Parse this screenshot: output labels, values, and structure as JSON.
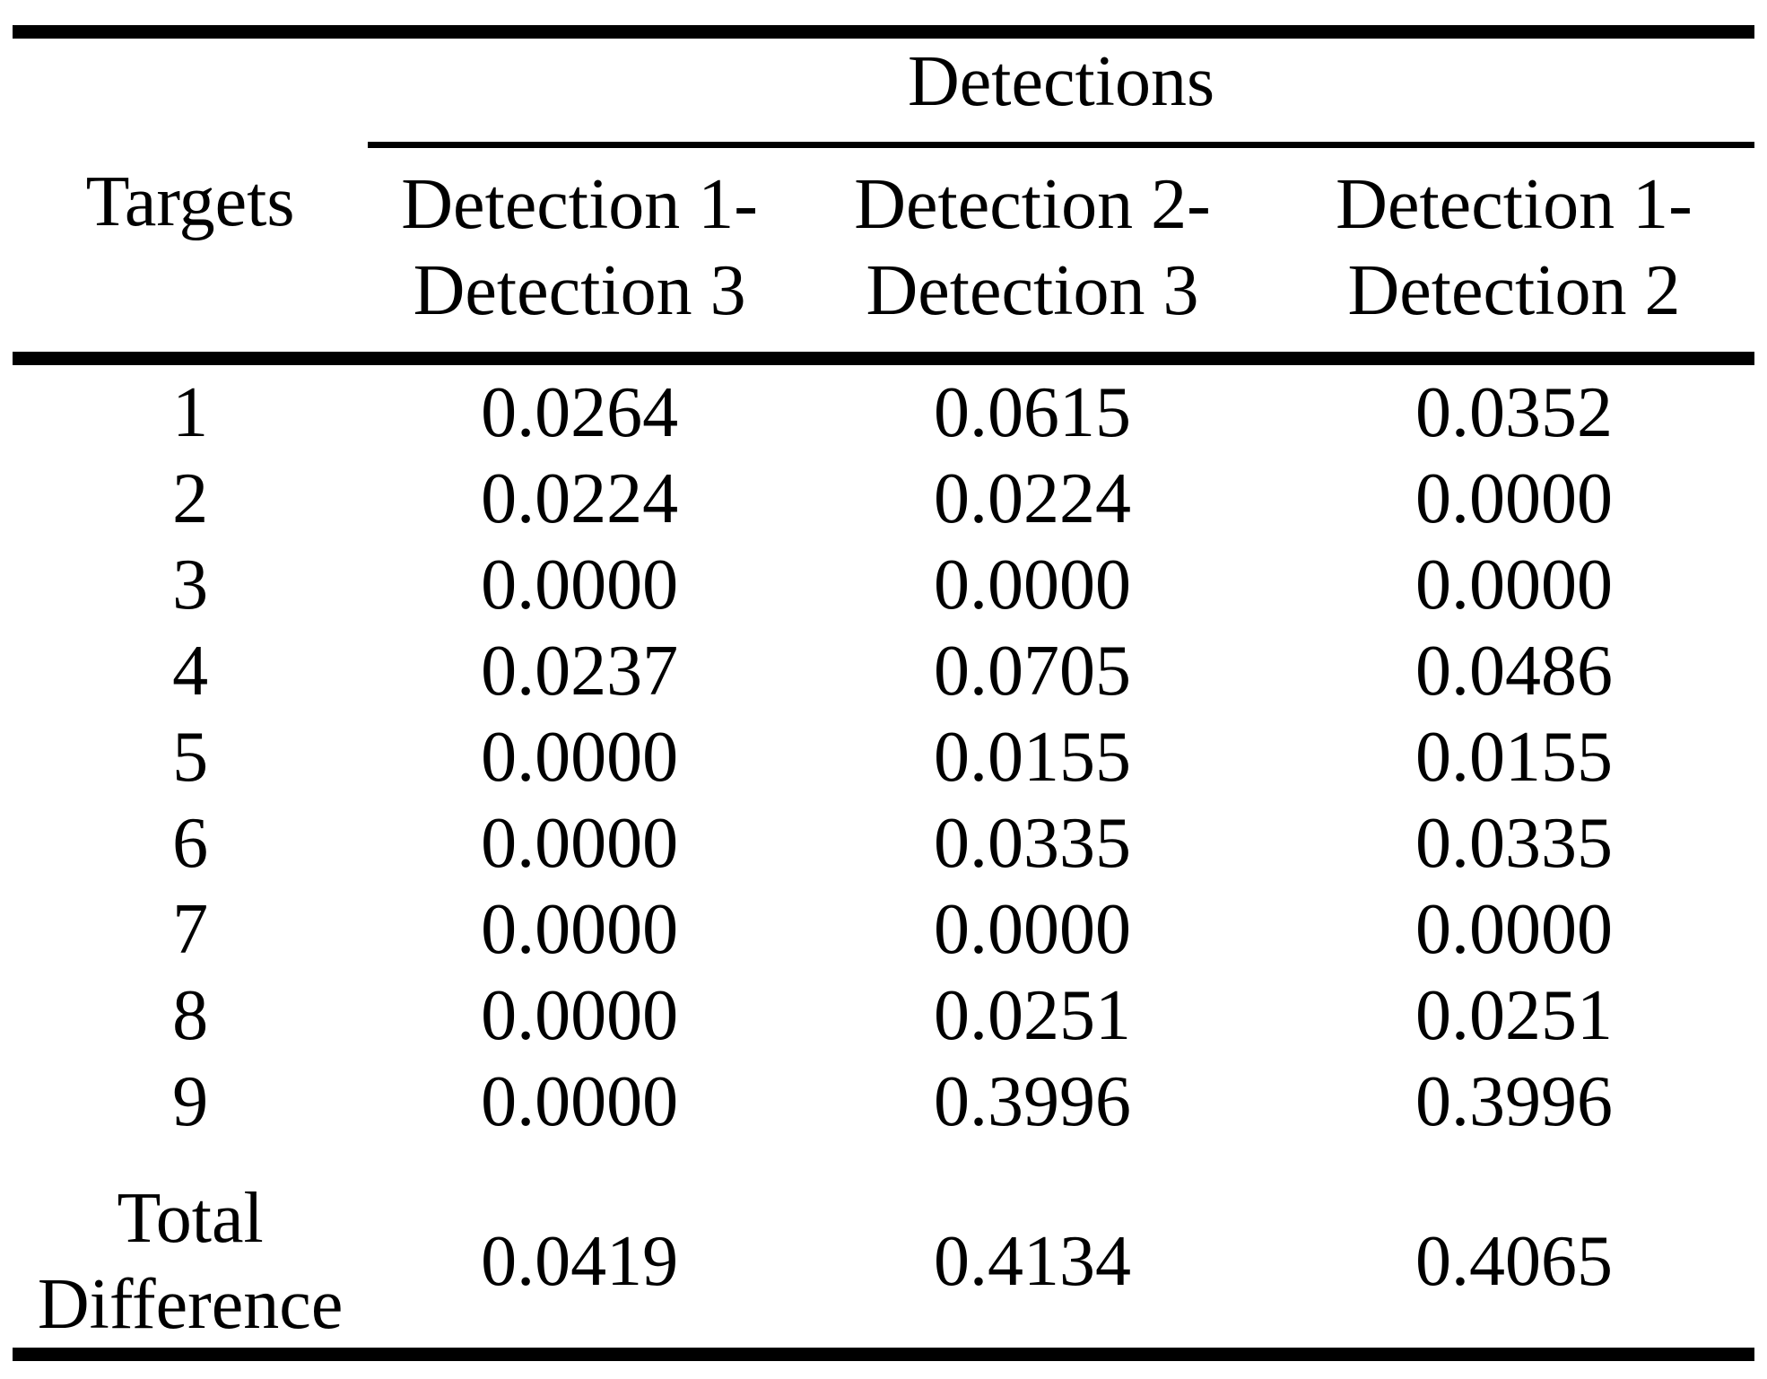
{
  "header": {
    "group_label": "Detections",
    "targets_label": "Targets",
    "columns": [
      {
        "line1": "Detection 1-",
        "line2": "Detection 3"
      },
      {
        "line1": "Detection 2-",
        "line2": "Detection 3"
      },
      {
        "line1": "Detection 1-",
        "line2": "Detection 2"
      }
    ]
  },
  "rows": [
    {
      "target": "1",
      "values": [
        "0.0264",
        "0.0615",
        "0.0352"
      ]
    },
    {
      "target": "2",
      "values": [
        "0.0224",
        "0.0224",
        "0.0000"
      ]
    },
    {
      "target": "3",
      "values": [
        "0.0000",
        "0.0000",
        "0.0000"
      ]
    },
    {
      "target": "4",
      "values": [
        "0.0237",
        "0.0705",
        "0.0486"
      ]
    },
    {
      "target": "5",
      "values": [
        "0.0000",
        "0.0155",
        "0.0155"
      ]
    },
    {
      "target": "6",
      "values": [
        "0.0000",
        "0.0335",
        "0.0335"
      ]
    },
    {
      "target": "7",
      "values": [
        "0.0000",
        "0.0000",
        "0.0000"
      ]
    },
    {
      "target": "8",
      "values": [
        "0.0000",
        "0.0251",
        "0.0251"
      ]
    },
    {
      "target": "9",
      "values": [
        "0.0000",
        "0.3996",
        "0.3996"
      ]
    }
  ],
  "total_row": {
    "label_line1": "Total",
    "label_line2": "Difference",
    "values": [
      "0.0419",
      "0.4134",
      "0.4065"
    ]
  },
  "colors": {
    "ink": "#000000",
    "paper": "#ffffff"
  }
}
